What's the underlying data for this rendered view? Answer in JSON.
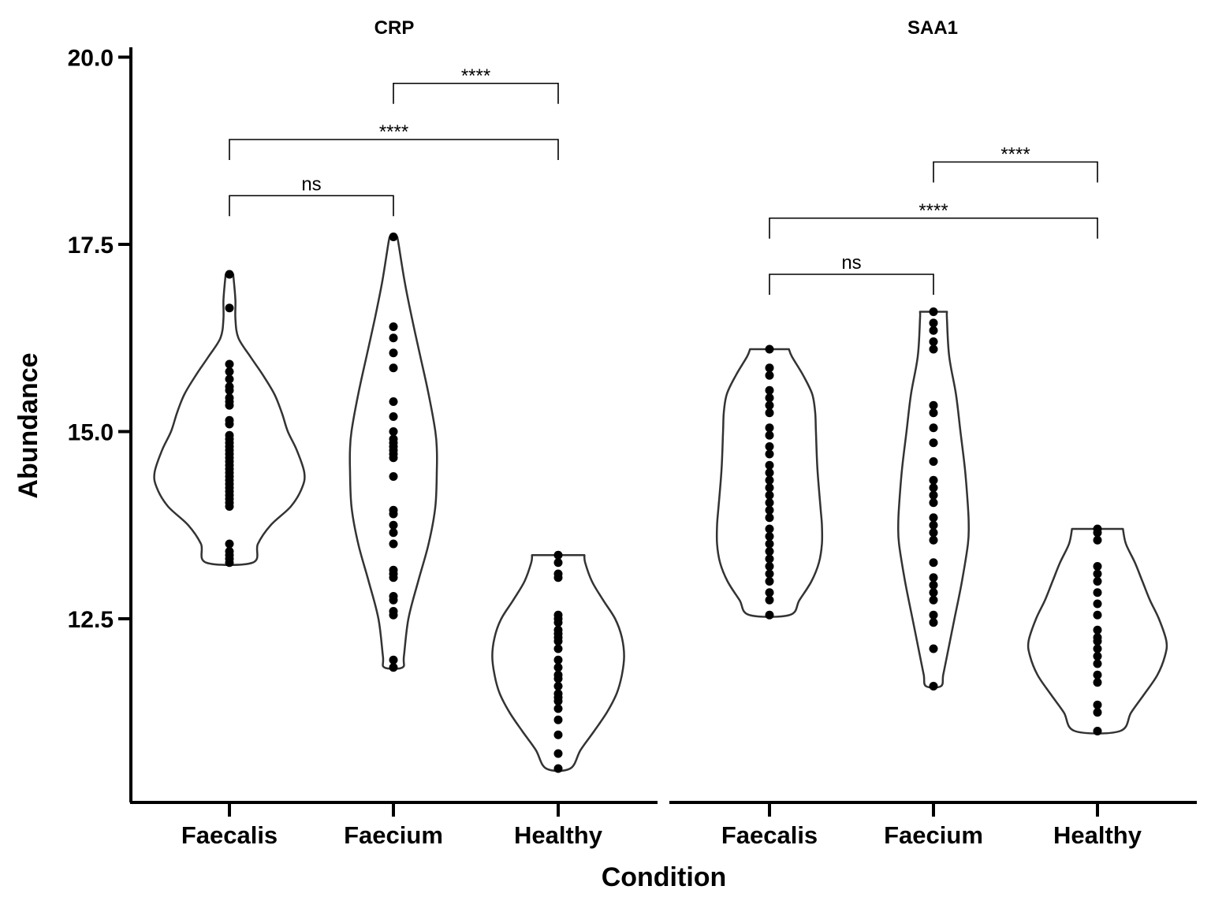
{
  "chart_data": {
    "type": "violin",
    "xlabel": "Condition",
    "ylabel": "Abundance",
    "ylim": [
      9.6,
      20.2
    ],
    "yticks": [
      12.5,
      15.0,
      17.5,
      20.0
    ],
    "y_tick_labels": [
      "12.5",
      "15.0",
      "17.5",
      "20.0"
    ],
    "categories": [
      "Faecalis",
      "Faecium",
      "Healthy"
    ],
    "panels": [
      {
        "title": "CRP",
        "groups": [
          {
            "category": "Faecalis",
            "min": 13.25,
            "max": 17.1,
            "density": [
              [
                13.25,
                0.31
              ],
              [
                13.5,
                0.38
              ],
              [
                13.75,
                0.55
              ],
              [
                14.0,
                0.82
              ],
              [
                14.25,
                0.97
              ],
              [
                14.45,
                1.0
              ],
              [
                14.75,
                0.9
              ],
              [
                15.0,
                0.78
              ],
              [
                15.25,
                0.7
              ],
              [
                15.5,
                0.6
              ],
              [
                15.75,
                0.45
              ],
              [
                16.0,
                0.28
              ],
              [
                16.25,
                0.12
              ],
              [
                16.5,
                0.08
              ],
              [
                16.75,
                0.08
              ],
              [
                17.0,
                0.06
              ],
              [
                17.1,
                0.05
              ]
            ],
            "points": [
              13.25,
              13.3,
              13.35,
              13.4,
              13.5,
              14.0,
              14.05,
              14.1,
              14.15,
              14.2,
              14.25,
              14.3,
              14.35,
              14.4,
              14.45,
              14.5,
              14.55,
              14.6,
              14.65,
              14.7,
              14.75,
              14.8,
              14.85,
              14.9,
              14.95,
              15.1,
              15.15,
              15.35,
              15.4,
              15.45,
              15.55,
              15.6,
              15.7,
              15.8,
              15.9,
              16.65,
              17.1
            ]
          },
          {
            "category": "Faecium",
            "min": 11.85,
            "max": 17.6,
            "density": [
              [
                11.85,
                0.12
              ],
              [
                12.0,
                0.14
              ],
              [
                12.5,
                0.2
              ],
              [
                13.0,
                0.33
              ],
              [
                13.5,
                0.47
              ],
              [
                14.0,
                0.56
              ],
              [
                14.5,
                0.58
              ],
              [
                14.75,
                0.58
              ],
              [
                15.0,
                0.56
              ],
              [
                15.5,
                0.47
              ],
              [
                16.0,
                0.36
              ],
              [
                16.5,
                0.25
              ],
              [
                17.0,
                0.15
              ],
              [
                17.5,
                0.07
              ],
              [
                17.6,
                0.05
              ]
            ],
            "points": [
              11.85,
              11.95,
              12.55,
              12.6,
              12.75,
              12.8,
              13.05,
              13.1,
              13.15,
              13.5,
              13.65,
              13.75,
              13.9,
              13.95,
              14.4,
              14.65,
              14.7,
              14.75,
              14.8,
              14.85,
              14.9,
              15.0,
              15.2,
              15.4,
              15.85,
              16.05,
              16.25,
              16.4,
              17.6
            ]
          },
          {
            "category": "Healthy",
            "min": 10.5,
            "max": 13.35,
            "density": [
              [
                10.5,
                0.16
              ],
              [
                10.75,
                0.3
              ],
              [
                11.0,
                0.48
              ],
              [
                11.25,
                0.65
              ],
              [
                11.5,
                0.78
              ],
              [
                11.75,
                0.85
              ],
              [
                12.0,
                0.88
              ],
              [
                12.25,
                0.85
              ],
              [
                12.5,
                0.76
              ],
              [
                12.75,
                0.6
              ],
              [
                13.0,
                0.45
              ],
              [
                13.25,
                0.36
              ],
              [
                13.35,
                0.35
              ]
            ],
            "points": [
              10.5,
              10.7,
              10.95,
              11.15,
              11.3,
              11.4,
              11.45,
              11.5,
              11.6,
              11.7,
              11.75,
              11.85,
              11.95,
              12.1,
              12.2,
              12.25,
              12.3,
              12.35,
              12.45,
              12.5,
              12.55,
              13.05,
              13.1,
              13.25,
              13.35
            ]
          }
        ],
        "comparisons": [
          {
            "from": "Faecalis",
            "to": "Faecium",
            "label": "ns",
            "level": 18.15
          },
          {
            "from": "Faecalis",
            "to": "Healthy",
            "label": "****",
            "level": 18.9
          },
          {
            "from": "Faecium",
            "to": "Healthy",
            "label": "****",
            "level": 19.65
          }
        ]
      },
      {
        "title": "SAA1",
        "groups": [
          {
            "category": "Faecalis",
            "min": 12.55,
            "max": 16.1,
            "density": [
              [
                12.55,
                0.27
              ],
              [
                12.75,
                0.4
              ],
              [
                13.0,
                0.56
              ],
              [
                13.25,
                0.66
              ],
              [
                13.5,
                0.7
              ],
              [
                13.75,
                0.7
              ],
              [
                14.0,
                0.68
              ],
              [
                14.5,
                0.64
              ],
              [
                15.0,
                0.62
              ],
              [
                15.25,
                0.61
              ],
              [
                15.5,
                0.57
              ],
              [
                15.75,
                0.45
              ],
              [
                16.0,
                0.3
              ],
              [
                16.1,
                0.26
              ]
            ],
            "points": [
              12.55,
              12.75,
              12.85,
              13.0,
              13.1,
              13.2,
              13.3,
              13.4,
              13.5,
              13.6,
              13.7,
              13.85,
              13.95,
              14.05,
              14.15,
              14.25,
              14.35,
              14.45,
              14.55,
              14.7,
              14.8,
              14.95,
              15.05,
              15.25,
              15.35,
              15.45,
              15.55,
              15.75,
              15.85,
              16.1
            ]
          },
          {
            "category": "Faecium",
            "min": 11.6,
            "max": 16.6,
            "density": [
              [
                11.6,
                0.1
              ],
              [
                11.75,
                0.13
              ],
              [
                12.0,
                0.18
              ],
              [
                12.5,
                0.28
              ],
              [
                13.0,
                0.38
              ],
              [
                13.5,
                0.46
              ],
              [
                13.75,
                0.47
              ],
              [
                14.0,
                0.46
              ],
              [
                14.5,
                0.42
              ],
              [
                15.0,
                0.36
              ],
              [
                15.5,
                0.3
              ],
              [
                16.0,
                0.21
              ],
              [
                16.5,
                0.18
              ],
              [
                16.6,
                0.18
              ]
            ],
            "points": [
              11.6,
              12.1,
              12.45,
              12.55,
              12.75,
              12.85,
              12.95,
              13.05,
              13.25,
              13.55,
              13.65,
              13.75,
              13.85,
              14.05,
              14.15,
              14.25,
              14.35,
              14.6,
              14.85,
              15.05,
              15.25,
              15.35,
              16.1,
              16.2,
              16.35,
              16.45,
              16.6
            ]
          },
          {
            "category": "Healthy",
            "min": 11.0,
            "max": 13.7,
            "density": [
              [
                11.0,
                0.3
              ],
              [
                11.25,
                0.45
              ],
              [
                11.5,
                0.63
              ],
              [
                11.75,
                0.8
              ],
              [
                12.0,
                0.9
              ],
              [
                12.2,
                0.92
              ],
              [
                12.5,
                0.82
              ],
              [
                12.75,
                0.7
              ],
              [
                13.0,
                0.6
              ],
              [
                13.25,
                0.5
              ],
              [
                13.5,
                0.38
              ],
              [
                13.7,
                0.34
              ]
            ],
            "points": [
              11.0,
              11.25,
              11.35,
              11.65,
              11.75,
              11.9,
              12.0,
              12.1,
              12.2,
              12.25,
              12.35,
              12.55,
              12.7,
              12.85,
              13.0,
              13.1,
              13.2,
              13.55,
              13.65,
              13.7
            ]
          }
        ],
        "comparisons": [
          {
            "from": "Faecalis",
            "to": "Faecium",
            "label": "ns",
            "level": 17.1
          },
          {
            "from": "Faecalis",
            "to": "Healthy",
            "label": "****",
            "level": 17.85
          },
          {
            "from": "Faecium",
            "to": "Healthy",
            "label": "****",
            "level": 18.6
          }
        ]
      }
    ]
  }
}
